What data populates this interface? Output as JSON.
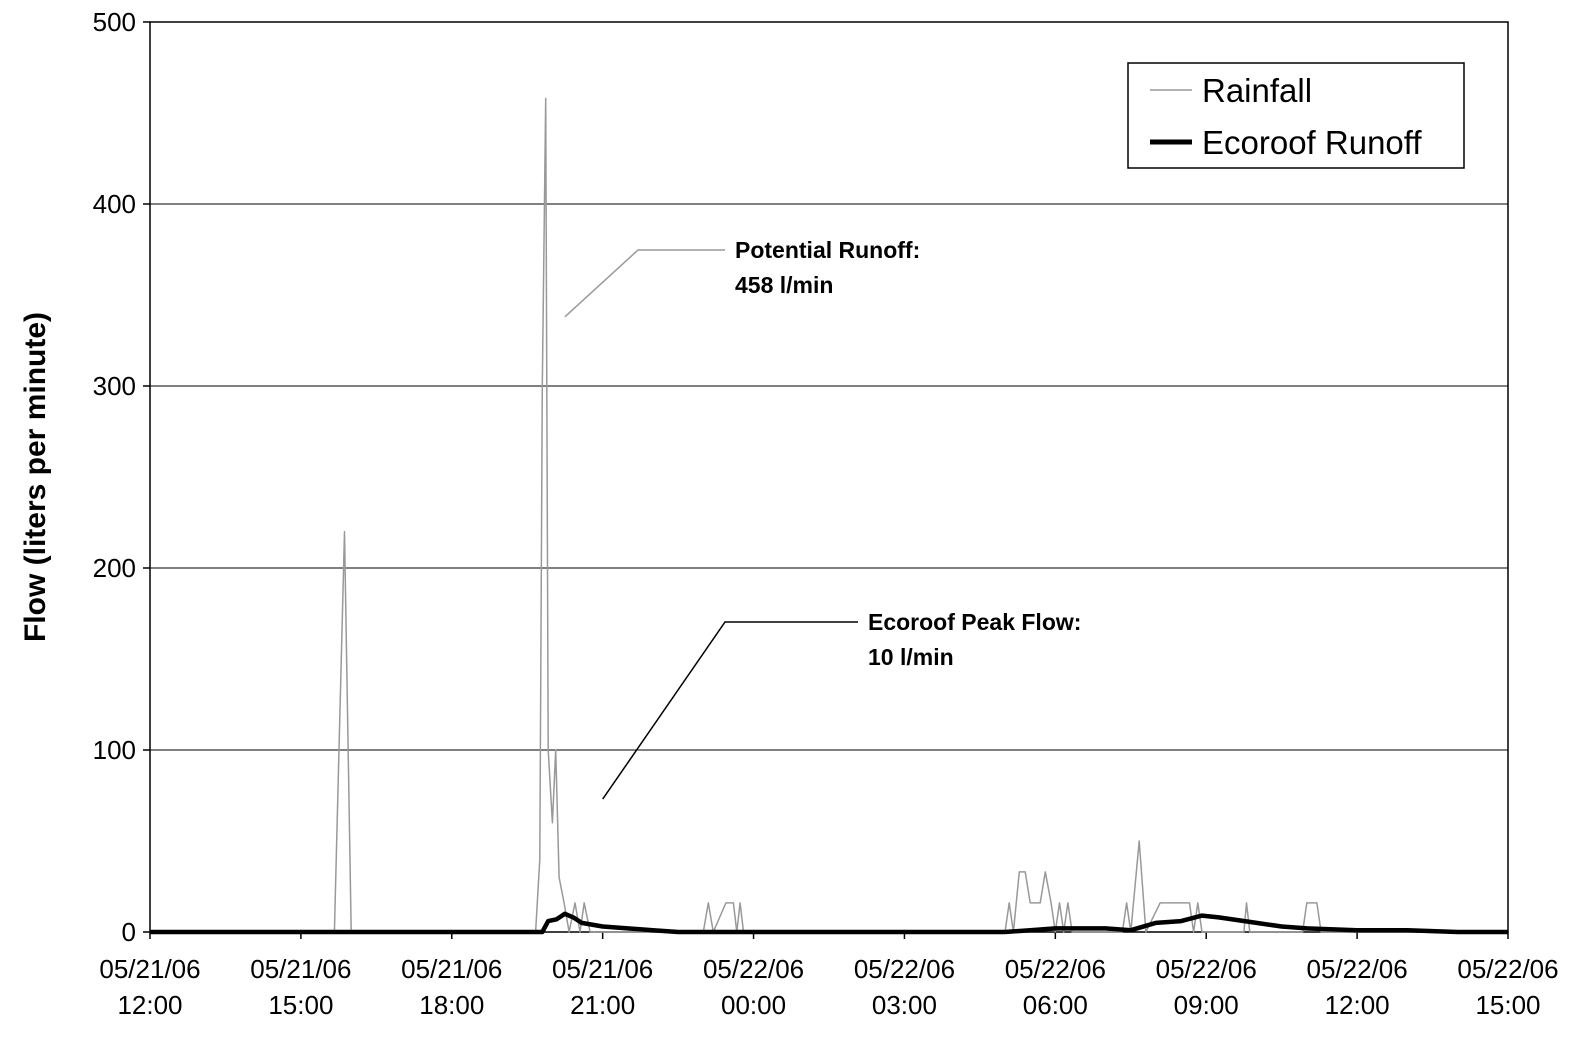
{
  "chart_data": {
    "type": "line",
    "title": "",
    "xlabel": "",
    "ylabel": "Flow (liters per minute)",
    "ylim": [
      0,
      500
    ],
    "xlim": [
      "05/21/06 12:00",
      "05/22/06 15:00"
    ],
    "grid": true,
    "legend_position": "top-right",
    "y_ticks": [
      "0",
      "100",
      "200",
      "300",
      "400",
      "500"
    ],
    "x_ticks": [
      {
        "date": "05/21/06",
        "time": "12:00"
      },
      {
        "date": "05/21/06",
        "time": "15:00"
      },
      {
        "date": "05/21/06",
        "time": "18:00"
      },
      {
        "date": "05/21/06",
        "time": "21:00"
      },
      {
        "date": "05/22/06",
        "time": "00:00"
      },
      {
        "date": "05/22/06",
        "time": "03:00"
      },
      {
        "date": "05/22/06",
        "time": "06:00"
      },
      {
        "date": "05/22/06",
        "time": "09:00"
      },
      {
        "date": "05/22/06",
        "time": "12:00"
      },
      {
        "date": "05/22/06",
        "time": "15:00"
      }
    ],
    "series": [
      {
        "name": "Rainfall",
        "color": "#999999",
        "points": [
          [
            "05/21/06 12:00",
            0
          ],
          [
            "05/21/06 15:40",
            0
          ],
          [
            "05/21/06 15:52",
            220
          ],
          [
            "05/21/06 16:00",
            0
          ],
          [
            "05/21/06 19:40",
            0
          ],
          [
            "05/21/06 19:45",
            40
          ],
          [
            "05/21/06 19:48",
            300
          ],
          [
            "05/21/06 19:52",
            458
          ],
          [
            "05/21/06 19:55",
            100
          ],
          [
            "05/21/06 20:00",
            60
          ],
          [
            "05/21/06 20:04",
            100
          ],
          [
            "05/21/06 20:08",
            30
          ],
          [
            "05/21/06 20:14",
            16
          ],
          [
            "05/21/06 20:20",
            0
          ],
          [
            "05/21/06 20:27",
            16
          ],
          [
            "05/21/06 20:33",
            0
          ],
          [
            "05/21/06 20:38",
            16
          ],
          [
            "05/21/06 20:45",
            0
          ],
          [
            "05/21/06 23:00",
            0
          ],
          [
            "05/21/06 23:06",
            16
          ],
          [
            "05/21/06 23:12",
            0
          ],
          [
            "05/21/06 23:27",
            16
          ],
          [
            "05/21/06 23:36",
            16
          ],
          [
            "05/21/06 23:40",
            0
          ],
          [
            "05/21/06 23:44",
            16
          ],
          [
            "05/21/06 23:48",
            0
          ],
          [
            "05/22/06 05:00",
            0
          ],
          [
            "05/22/06 05:05",
            16
          ],
          [
            "05/22/06 05:10",
            0
          ],
          [
            "05/22/06 05:17",
            33
          ],
          [
            "05/22/06 05:24",
            33
          ],
          [
            "05/22/06 05:30",
            16
          ],
          [
            "05/22/06 05:42",
            16
          ],
          [
            "05/22/06 05:48",
            33
          ],
          [
            "05/22/06 05:55",
            16
          ],
          [
            "05/22/06 06:00",
            0
          ],
          [
            "05/22/06 06:05",
            16
          ],
          [
            "05/22/06 06:10",
            0
          ],
          [
            "05/22/06 06:15",
            16
          ],
          [
            "05/22/06 06:20",
            0
          ],
          [
            "05/22/06 07:20",
            0
          ],
          [
            "05/22/06 07:25",
            16
          ],
          [
            "05/22/06 07:30",
            0
          ],
          [
            "05/22/06 07:40",
            50
          ],
          [
            "05/22/06 07:48",
            0
          ],
          [
            "05/22/06 08:05",
            16
          ],
          [
            "05/22/06 08:40",
            16
          ],
          [
            "05/22/06 08:45",
            0
          ],
          [
            "05/22/06 08:50",
            16
          ],
          [
            "05/22/06 08:55",
            0
          ],
          [
            "05/22/06 09:05",
            0
          ],
          [
            "05/22/06 09:10",
            0
          ],
          [
            "05/22/06 09:45",
            0
          ],
          [
            "05/22/06 09:48",
            16
          ],
          [
            "05/22/06 09:52",
            0
          ],
          [
            "05/22/06 10:55",
            0
          ],
          [
            "05/22/06 11:00",
            16
          ],
          [
            "05/22/06 11:12",
            16
          ],
          [
            "05/22/06 11:17",
            0
          ],
          [
            "05/22/06 15:00",
            0
          ]
        ]
      },
      {
        "name": "Ecoroof Runoff",
        "color": "#000000",
        "points": [
          [
            "05/21/06 12:00",
            0
          ],
          [
            "05/21/06 19:48",
            0
          ],
          [
            "05/21/06 19:55",
            6
          ],
          [
            "05/21/06 20:05",
            7
          ],
          [
            "05/21/06 20:15",
            10
          ],
          [
            "05/21/06 20:25",
            8
          ],
          [
            "05/21/06 20:35",
            5
          ],
          [
            "05/21/06 21:00",
            3
          ],
          [
            "05/21/06 21:30",
            2
          ],
          [
            "05/21/06 22:00",
            1
          ],
          [
            "05/21/06 22:30",
            0
          ],
          [
            "05/22/06 05:00",
            0
          ],
          [
            "05/22/06 05:30",
            1
          ],
          [
            "05/22/06 06:00",
            2
          ],
          [
            "05/22/06 06:30",
            2
          ],
          [
            "05/22/06 07:00",
            2
          ],
          [
            "05/22/06 07:30",
            1
          ],
          [
            "05/22/06 08:00",
            5
          ],
          [
            "05/22/06 08:30",
            6
          ],
          [
            "05/22/06 08:55",
            9
          ],
          [
            "05/22/06 09:15",
            8
          ],
          [
            "05/22/06 10:00",
            5
          ],
          [
            "05/22/06 10:30",
            3
          ],
          [
            "05/22/06 11:00",
            2
          ],
          [
            "05/22/06 12:00",
            1
          ],
          [
            "05/22/06 13:00",
            1
          ],
          [
            "05/22/06 14:00",
            0
          ],
          [
            "05/22/06 15:00",
            0
          ]
        ]
      }
    ],
    "annotations": [
      {
        "lines": [
          "Potential Runoff:",
          "458 l/min"
        ],
        "series": "Rainfall",
        "color": "#999999",
        "points_to": [
          "05/21/06 20:15",
          338
        ]
      },
      {
        "lines": [
          "Ecoroof Peak Flow:",
          "10 l/min"
        ],
        "series": "Ecoroof Runoff",
        "color": "#000000",
        "points_to": [
          "05/21/06 21:00",
          73
        ]
      }
    ]
  }
}
